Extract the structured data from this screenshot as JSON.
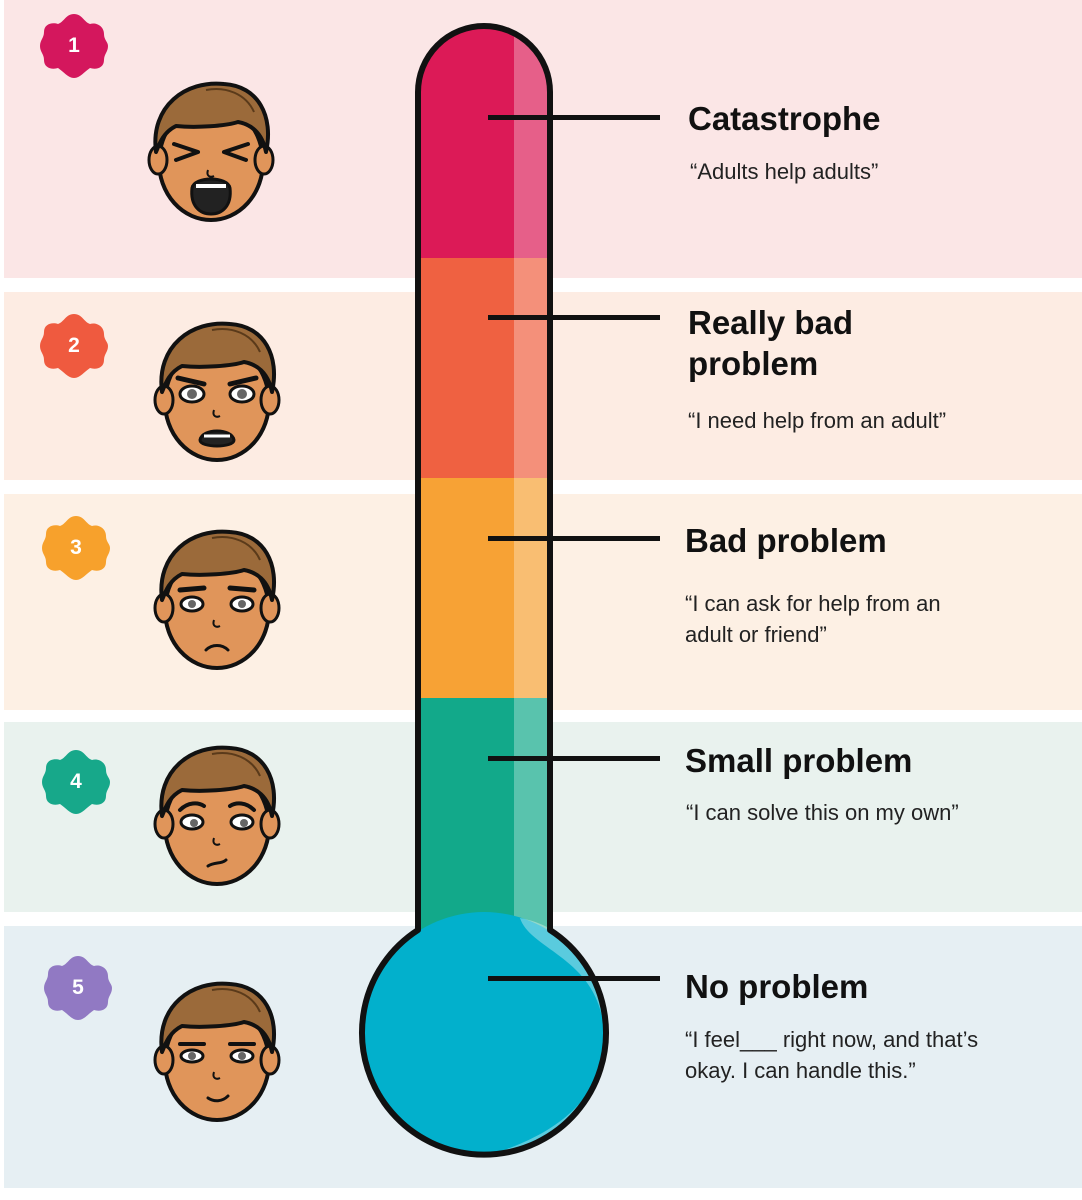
{
  "levels": [
    {
      "number": "1",
      "title": "Catastrophe",
      "quote": "“Adults help adults”",
      "badge_color": "#d4175d",
      "band_color": "#fbe6e6",
      "tube_color": "#dc1a57",
      "expression": "screaming"
    },
    {
      "number": "2",
      "title": "Really bad problem",
      "quote": "“I need help from an adult”",
      "badge_color": "#ef5a3f",
      "band_color": "#fdece3",
      "tube_color": "#ef6141",
      "expression": "alarmed"
    },
    {
      "number": "3",
      "title": "Bad problem",
      "quote": "“I can ask for help from an adult or friend”",
      "badge_color": "#f7a12c",
      "band_color": "#fdf0e4",
      "tube_color": "#f7a235",
      "expression": "worried"
    },
    {
      "number": "4",
      "title": "Small problem",
      "quote": "“I can solve this on my own”",
      "badge_color": "#17a88a",
      "band_color": "#e9f2ee",
      "tube_color": "#12a98a",
      "expression": "uneasy"
    },
    {
      "number": "5",
      "title": "No problem",
      "quote": "“I feel___ right now, and that’s okay. I can handle this.”",
      "badge_color": "#9179c3",
      "band_color": "#e6eff3",
      "tube_color": "#02b0cc",
      "expression": "calm"
    }
  ]
}
